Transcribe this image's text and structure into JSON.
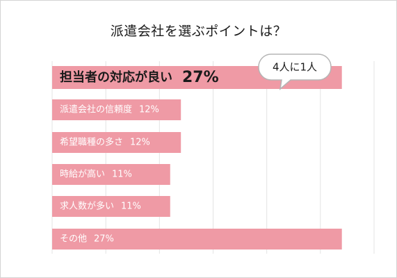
{
  "chart_data": {
    "type": "bar",
    "orientation": "horizontal",
    "title": "派遣会社を選ぶポイントは？",
    "categories": [
      "担当者の対応が良い",
      "派遣会社の信頼度",
      "希望職種の多さ",
      "時給が高い",
      "求人数が多い",
      "その他"
    ],
    "values": [
      27,
      12,
      12,
      11,
      11,
      27
    ],
    "value_labels": [
      "27%",
      "12%",
      "12%",
      "11%",
      "11%",
      "27%"
    ],
    "highlight_index": 0,
    "callout": "4人に1人",
    "xlim": [
      0,
      30
    ],
    "grid": true,
    "colors": {
      "bar": "#ef9aa5",
      "label_default": "#ffffff",
      "label_highlight": "#1a1a1a",
      "grid": "#e3e3e3",
      "callout_fill": "#ffffff",
      "callout_stroke": "#b5b5b5"
    }
  }
}
